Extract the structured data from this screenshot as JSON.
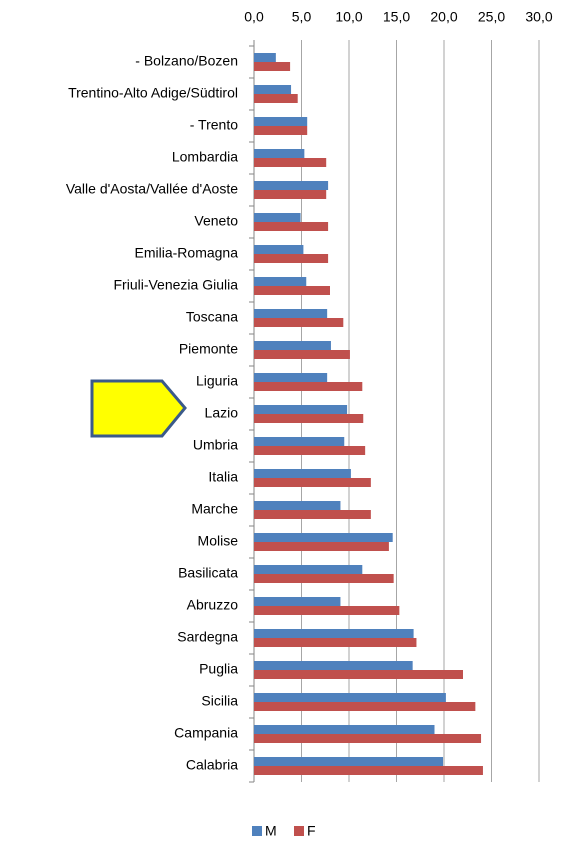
{
  "chart_data": {
    "type": "bar",
    "orientation": "horizontal",
    "categories": [
      "- Bolzano/Bozen",
      "Trentino-Alto Adige/Südtirol",
      "- Trento",
      "Lombardia",
      "Valle d'Aosta/Vallée d'Aoste",
      "Veneto",
      "Emilia-Romagna",
      "Friuli-Venezia Giulia",
      "Toscana",
      "Piemonte",
      "Liguria",
      "Lazio",
      "Umbria",
      "Italia",
      "Marche",
      "Molise",
      "Basilicata",
      "Abruzzo",
      "Sardegna",
      "Puglia",
      "Sicilia",
      "Campania",
      "Calabria"
    ],
    "series": [
      {
        "name": "M",
        "color": "#4f81bd",
        "values": [
          2.3,
          3.9,
          5.6,
          5.3,
          7.8,
          4.9,
          5.2,
          5.5,
          7.7,
          8.1,
          7.7,
          9.8,
          9.5,
          10.2,
          9.1,
          14.6,
          11.4,
          9.1,
          16.8,
          16.7,
          20.2,
          19.0,
          19.9
        ]
      },
      {
        "name": "F",
        "color": "#c0504d",
        "values": [
          3.8,
          4.6,
          5.6,
          7.6,
          7.6,
          7.8,
          7.8,
          8.0,
          9.4,
          10.1,
          11.4,
          11.5,
          11.7,
          12.3,
          12.3,
          14.2,
          14.7,
          15.3,
          17.1,
          22.0,
          23.3,
          23.9,
          24.1
        ]
      }
    ],
    "xlim": [
      0,
      30
    ],
    "xticks": [
      {
        "value": 0,
        "label": "0,0"
      },
      {
        "value": 5,
        "label": "5,0"
      },
      {
        "value": 10,
        "label": "10,0"
      },
      {
        "value": 15,
        "label": "15,0"
      },
      {
        "value": 20,
        "label": "20,0"
      },
      {
        "value": 25,
        "label": "25,0"
      },
      {
        "value": 30,
        "label": "30,0"
      }
    ],
    "grid": true,
    "legend": "bottom"
  }
}
